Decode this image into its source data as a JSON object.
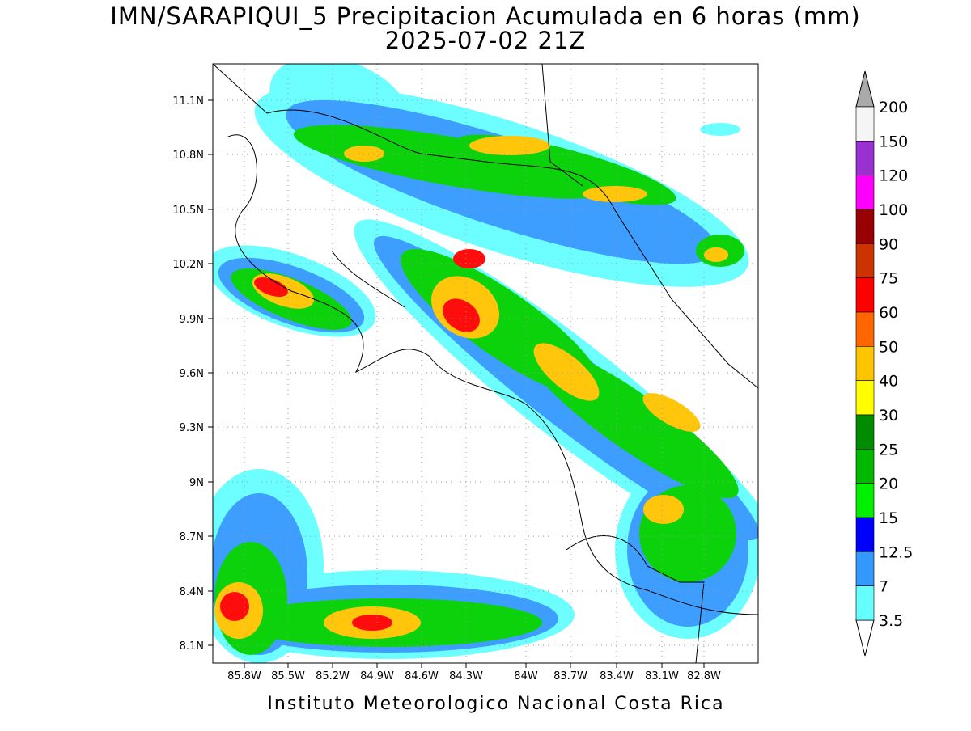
{
  "title": "IMN/SARAPIQUI_5 Precipitacion Acumulada en 6 horas (mm)",
  "subtitle": "2025-07-02 21Z",
  "footer": "Instituto Meteorologico Nacional Costa Rica",
  "lat_labels": [
    "11.1N",
    "10.8N",
    "10.5N",
    "10.2N",
    "9.9N",
    "9.6N",
    "9.3N",
    "9N",
    "8.7N",
    "8.4N",
    "8.1N"
  ],
  "lon_labels": [
    "85.8W",
    "85.5W",
    "85.2W",
    "84.9W",
    "84.6W",
    "84.3W",
    "84W",
    "83.7W",
    "83.4W",
    "83.1W",
    "82.8W"
  ],
  "colorbar": {
    "labels": [
      "200",
      "150",
      "120",
      "100",
      "90",
      "75",
      "60",
      "50",
      "40",
      "30",
      "25",
      "20",
      "15",
      "12.5",
      "7",
      "3.5"
    ],
    "colors": [
      "#f5f5f5",
      "#9b30d0",
      "#ff00ff",
      "#990000",
      "#cc3300",
      "#ff0000",
      "#ff6600",
      "#ffc400",
      "#ffff00",
      "#008c00",
      "#00b800",
      "#00f000",
      "#0000ff",
      "#3399ff",
      "#66ffff"
    ],
    "over_color": "#aaaaaa",
    "under_color": "#ffffff"
  }
}
